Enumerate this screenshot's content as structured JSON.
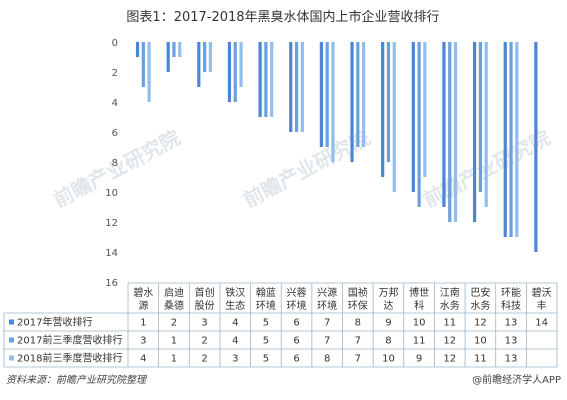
{
  "chart_data": {
    "type": "bar",
    "title": "图表1：2017-2018年黑臭水体国内上市企业营收排行",
    "categories": [
      [
        "碧水",
        "源"
      ],
      [
        "启迪",
        "桑德"
      ],
      [
        "首创",
        "股份"
      ],
      [
        "铁汉",
        "生态"
      ],
      [
        "翰蓝",
        "环境"
      ],
      [
        "兴蓉",
        "环境"
      ],
      [
        "兴源",
        "环境"
      ],
      [
        "国祯",
        "环保"
      ],
      [
        "万邦",
        "达"
      ],
      [
        "博世",
        "科"
      ],
      [
        "江南",
        "水务"
      ],
      [
        "巴安",
        "水务"
      ],
      [
        "环能",
        "科技"
      ],
      [
        "碧沃",
        "丰"
      ]
    ],
    "y_ticks": [
      0,
      2,
      4,
      6,
      8,
      10,
      12,
      14,
      16
    ],
    "ylim": [
      0,
      16
    ],
    "y_inverted": true,
    "grid": false,
    "series": [
      {
        "name": "2017年营收排行",
        "color": "#4a86d4",
        "values": [
          1,
          2,
          3,
          4,
          5,
          6,
          7,
          8,
          9,
          10,
          11,
          12,
          13,
          14
        ]
      },
      {
        "name": "2017前三季度营收排行",
        "color": "#6aa0e0",
        "values": [
          3,
          1,
          2,
          4,
          5,
          6,
          7,
          7,
          8,
          11,
          12,
          10,
          13,
          null
        ]
      },
      {
        "name": "2018前三季度营收排行",
        "color": "#93bdec",
        "values": [
          4,
          1,
          2,
          3,
          5,
          6,
          8,
          7,
          10,
          9,
          12,
          11,
          13,
          null
        ]
      }
    ]
  },
  "watermark": "前瞻产业研究院",
  "footer": {
    "source": "资料来源：前瞻产业研究院整理",
    "credit": "@前瞻经济学人APP"
  }
}
